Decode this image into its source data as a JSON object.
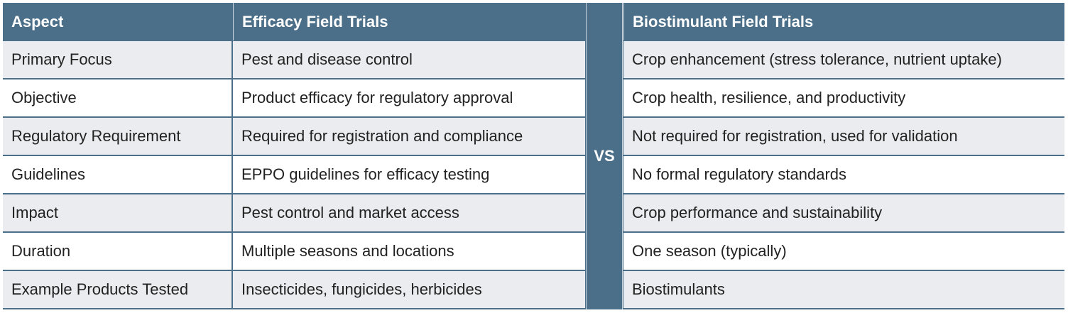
{
  "table": {
    "header": [
      "Aspect",
      "Efficacy Field Trials",
      "Biostimulant Field Trials"
    ],
    "divider": "VS",
    "rows": [
      [
        "Primary Focus",
        "Pest and disease control",
        "Crop enhancement (stress tolerance, nutrient uptake)"
      ],
      [
        "Objective",
        "Product efficacy for regulatory approval",
        "Crop health, resilience, and productivity"
      ],
      [
        "Regulatory Requirement",
        "Required for registration and compliance",
        "Not required for registration, used for validation"
      ],
      [
        "Guidelines",
        "EPPO guidelines for efficacy testing",
        "No formal regulatory standards"
      ],
      [
        "Impact",
        "Pest control and market access",
        "Crop performance and sustainability"
      ],
      [
        "Duration",
        "Multiple seasons and locations",
        "One season (typically)"
      ],
      [
        "Example Products Tested",
        "Insecticides, fungicides, herbicides",
        "Biostimulants"
      ]
    ]
  }
}
